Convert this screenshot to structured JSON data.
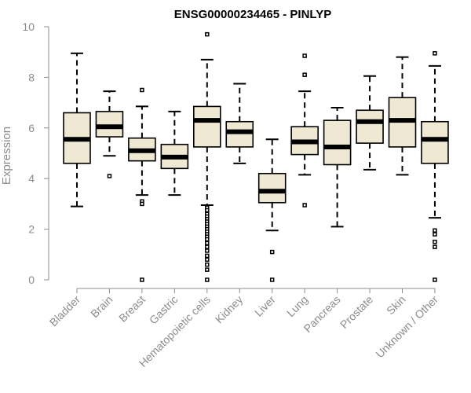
{
  "chart_data": {
    "type": "boxplot",
    "title": "ENSG00000234465 - PINLYP",
    "xlabel": "",
    "ylabel": "Expression",
    "ylim": [
      0,
      10
    ],
    "yticks": [
      0,
      2,
      4,
      6,
      8,
      10
    ],
    "grid": false,
    "box_fill": "#efe8d3",
    "box_stroke": "#000000",
    "axis_color": "#8c8c8c",
    "categories": [
      "Bladder",
      "Brain",
      "Breast",
      "Gastric",
      "Hematopoietic cells",
      "Kidney",
      "Liver",
      "Lung",
      "Pancreas",
      "Prostate",
      "Skin",
      "Unknown / Other"
    ],
    "boxes": [
      {
        "category": "Bladder",
        "whisker_low": 2.9,
        "q1": 4.6,
        "median": 5.55,
        "q3": 6.6,
        "whisker_high": 8.95,
        "outliers": []
      },
      {
        "category": "Brain",
        "whisker_low": 4.9,
        "q1": 5.65,
        "median": 6.05,
        "q3": 6.65,
        "whisker_high": 7.45,
        "outliers": [
          4.1
        ]
      },
      {
        "category": "Breast",
        "whisker_low": 3.35,
        "q1": 4.7,
        "median": 5.1,
        "q3": 5.6,
        "whisker_high": 6.85,
        "outliers": [
          7.5,
          3.1,
          3.0,
          0.0
        ]
      },
      {
        "category": "Gastric",
        "whisker_low": 3.35,
        "q1": 4.4,
        "median": 4.85,
        "q3": 5.35,
        "whisker_high": 6.65,
        "outliers": []
      },
      {
        "category": "Hematopoietic cells",
        "whisker_low": 2.95,
        "q1": 5.25,
        "median": 6.3,
        "q3": 6.85,
        "whisker_high": 8.7,
        "outliers": [
          9.7,
          2.85,
          2.75,
          2.6,
          2.5,
          2.4,
          2.3,
          2.2,
          2.1,
          2.0,
          1.9,
          1.8,
          1.7,
          1.6,
          1.45,
          1.3,
          1.15,
          0.95,
          0.8,
          0.6,
          0.4,
          0.0
        ]
      },
      {
        "category": "Kidney",
        "whisker_low": 4.6,
        "q1": 5.25,
        "median": 5.85,
        "q3": 6.25,
        "whisker_high": 7.75,
        "outliers": []
      },
      {
        "category": "Liver",
        "whisker_low": 1.95,
        "q1": 3.05,
        "median": 3.5,
        "q3": 4.2,
        "whisker_high": 5.55,
        "outliers": [
          1.1,
          0.0
        ]
      },
      {
        "category": "Lung",
        "whisker_low": 4.15,
        "q1": 4.95,
        "median": 5.45,
        "q3": 6.05,
        "whisker_high": 7.45,
        "outliers": [
          8.85,
          8.1,
          2.95
        ]
      },
      {
        "category": "Pancreas",
        "whisker_low": 2.1,
        "q1": 4.55,
        "median": 5.25,
        "q3": 6.3,
        "whisker_high": 6.8,
        "outliers": []
      },
      {
        "category": "Prostate",
        "whisker_low": 4.35,
        "q1": 5.4,
        "median": 6.25,
        "q3": 6.7,
        "whisker_high": 8.05,
        "outliers": []
      },
      {
        "category": "Skin",
        "whisker_low": 4.15,
        "q1": 5.25,
        "median": 6.3,
        "q3": 7.2,
        "whisker_high": 8.8,
        "outliers": []
      },
      {
        "category": "Unknown / Other",
        "whisker_low": 2.45,
        "q1": 4.6,
        "median": 5.55,
        "q3": 6.25,
        "whisker_high": 8.45,
        "outliers": [
          8.95,
          1.95,
          1.8,
          1.5,
          1.3,
          0.0
        ]
      }
    ]
  }
}
